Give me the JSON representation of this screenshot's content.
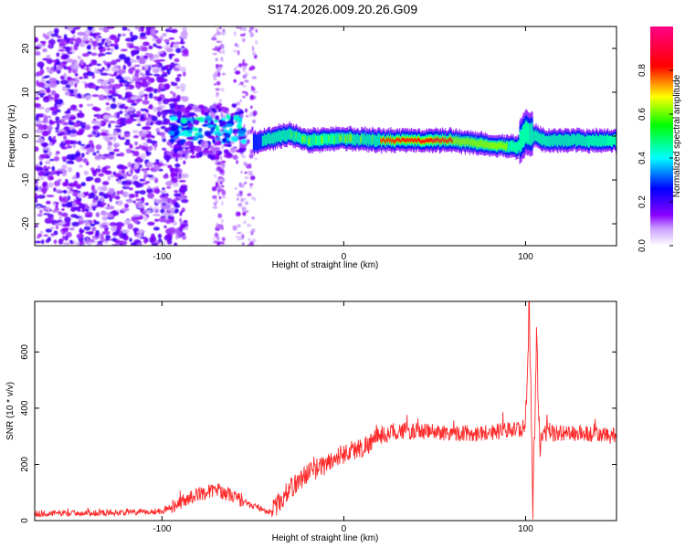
{
  "title": "S174.2026.009.20.26.G09",
  "chart_data": [
    {
      "type": "heatmap",
      "xlabel": "Height of straight line (km)",
      "ylabel": "Frequency (Hz)",
      "xlim": [
        -170,
        150
      ],
      "ylim": [
        -25,
        25
      ],
      "xticks": [
        -100,
        0,
        100
      ],
      "yticks": [
        -20,
        -10,
        0,
        10,
        20
      ],
      "colorbar": {
        "label": "Normalized spectral amplitude",
        "range": [
          0,
          1
        ],
        "ticks": [
          0.0,
          0.2,
          0.4,
          0.6,
          0.8
        ],
        "tick_labels": [
          "0.0",
          "0.2",
          "0.4",
          "0.6",
          "0.8"
        ],
        "colors": [
          "#ffffff",
          "#8a00ff",
          "#0000ff",
          "#00ffff",
          "#00ff00",
          "#ffff00",
          "#ff0000",
          "#ff00aa"
        ]
      },
      "features": [
        {
          "name": "noise",
          "x_range": [
            -170,
            -95
          ],
          "freq_range": [
            -25,
            25
          ],
          "amplitude": 0.15
        },
        {
          "name": "burst",
          "x_range": [
            -95,
            -55
          ],
          "freq_range": [
            -5,
            7
          ],
          "amplitude": 0.3
        },
        {
          "name": "signal line",
          "x_range": [
            -50,
            150
          ],
          "center_freq": [
            [
              -50,
              -1.5
            ],
            [
              -30,
              0.5
            ],
            [
              -20,
              -1.0
            ],
            [
              0,
              -0.5
            ],
            [
              20,
              -1.0
            ],
            [
              60,
              -1.0
            ],
            [
              80,
              -2.0
            ],
            [
              95,
              -2.5
            ],
            [
              100,
              1.0
            ],
            [
              110,
              -1.0
            ],
            [
              150,
              -1.0
            ]
          ],
          "amplitude": 0.8
        }
      ]
    },
    {
      "type": "line",
      "xlabel": "Height of straight line (km)",
      "ylabel": "SNR (10 * v/v)",
      "xlim": [
        -170,
        150
      ],
      "ylim": [
        0,
        780
      ],
      "xticks": [
        -100,
        0,
        100
      ],
      "yticks": [
        0,
        200,
        400,
        600
      ],
      "color": "#ff2a2a",
      "series": [
        {
          "name": "SNR",
          "x": [
            -170,
            -110,
            -100,
            -90,
            -80,
            -70,
            -60,
            -50,
            -40,
            -30,
            -20,
            -10,
            0,
            10,
            20,
            30,
            50,
            70,
            90,
            100,
            102,
            104,
            106,
            108,
            110,
            115,
            130,
            150
          ],
          "values": [
            25,
            30,
            35,
            65,
            95,
            110,
            85,
            50,
            30,
            110,
            170,
            200,
            240,
            260,
            300,
            320,
            315,
            310,
            320,
            330,
            780,
            40,
            660,
            220,
            340,
            310,
            310,
            300
          ]
        }
      ]
    }
  ]
}
